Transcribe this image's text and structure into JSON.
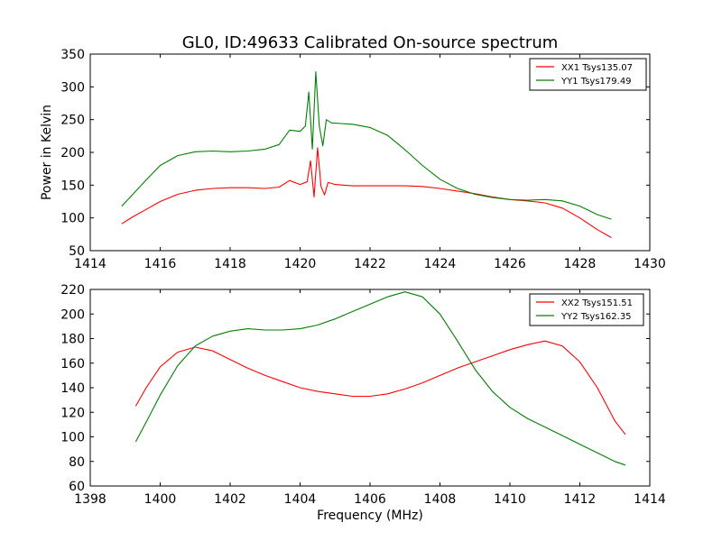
{
  "title": "GL0, ID:49633 Calibrated On-source spectrum",
  "chart_data": [
    {
      "type": "line",
      "title": "GL0, ID:49633 Calibrated On-source spectrum",
      "xlabel": "",
      "ylabel": "Power in Kelvin",
      "xlim": [
        1414,
        1430
      ],
      "ylim": [
        50,
        350
      ],
      "xticks": [
        1414,
        1416,
        1418,
        1420,
        1422,
        1424,
        1426,
        1428,
        1430
      ],
      "yticks": [
        50,
        100,
        150,
        200,
        250,
        300,
        350
      ],
      "grid": false,
      "legend_position": "top-right",
      "series": [
        {
          "name": "XX1 Tsys135.07",
          "color": "#ff0000",
          "x": [
            1414.9,
            1415.2,
            1415.6,
            1416.0,
            1416.5,
            1417.0,
            1417.5,
            1418.0,
            1418.5,
            1419.0,
            1419.4,
            1419.7,
            1420.0,
            1420.2,
            1420.3,
            1420.4,
            1420.5,
            1420.6,
            1420.7,
            1420.8,
            1421.0,
            1421.5,
            1422.0,
            1422.5,
            1423.0,
            1423.5,
            1424.0,
            1424.5,
            1425.0,
            1425.5,
            1426.0,
            1426.5,
            1427.0,
            1427.5,
            1428.0,
            1428.5,
            1428.9
          ],
          "y": [
            91,
            101,
            113,
            125,
            136,
            142,
            145,
            146,
            146,
            145,
            147,
            157,
            151,
            155,
            187,
            132,
            207,
            148,
            135,
            154,
            151,
            149,
            149,
            149,
            149,
            148,
            145,
            141,
            137,
            132,
            128,
            126,
            123,
            115,
            100,
            82,
            70
          ]
        },
        {
          "name": "YY1 Tsys179.49",
          "color": "#008000",
          "x": [
            1414.9,
            1415.2,
            1415.6,
            1416.0,
            1416.5,
            1417.0,
            1417.5,
            1418.0,
            1418.5,
            1419.0,
            1419.4,
            1419.7,
            1420.0,
            1420.15,
            1420.25,
            1420.35,
            1420.45,
            1420.55,
            1420.65,
            1420.75,
            1420.9,
            1421.5,
            1422.0,
            1422.5,
            1423.0,
            1423.5,
            1424.0,
            1424.5,
            1425.0,
            1425.5,
            1426.0,
            1426.5,
            1427.0,
            1427.5,
            1428.0,
            1428.5,
            1428.9
          ],
          "y": [
            118,
            135,
            158,
            180,
            195,
            201,
            202,
            201,
            202,
            205,
            212,
            234,
            232,
            240,
            292,
            205,
            323,
            240,
            210,
            250,
            245,
            243,
            238,
            226,
            204,
            180,
            159,
            145,
            136,
            131,
            128,
            127,
            128,
            126,
            118,
            105,
            98
          ]
        }
      ]
    },
    {
      "type": "line",
      "title": "",
      "xlabel": "Frequency (MHz)",
      "ylabel": "",
      "xlim": [
        1398,
        1414
      ],
      "ylim": [
        60,
        220
      ],
      "xticks": [
        1398,
        1400,
        1402,
        1404,
        1406,
        1408,
        1410,
        1412,
        1414
      ],
      "yticks": [
        60,
        80,
        100,
        120,
        140,
        160,
        180,
        200,
        220
      ],
      "grid": false,
      "legend_position": "top-right",
      "series": [
        {
          "name": "XX2 Tsys151.51",
          "color": "#ff0000",
          "x": [
            1399.3,
            1399.6,
            1400.0,
            1400.5,
            1401.0,
            1401.5,
            1402.0,
            1402.5,
            1403.0,
            1403.5,
            1404.0,
            1404.5,
            1405.0,
            1405.5,
            1406.0,
            1406.5,
            1407.0,
            1407.5,
            1408.0,
            1408.5,
            1409.0,
            1409.5,
            1410.0,
            1410.5,
            1411.0,
            1411.5,
            1412.0,
            1412.5,
            1413.0,
            1413.3
          ],
          "y": [
            125,
            140,
            157,
            169,
            173,
            170,
            163,
            156,
            150,
            145,
            140,
            137,
            135,
            133,
            133,
            135,
            139,
            144,
            150,
            156,
            161,
            166,
            171,
            175,
            178,
            174,
            161,
            140,
            113,
            102
          ]
        },
        {
          "name": "YY2 Tsys162.35",
          "color": "#008000",
          "x": [
            1399.3,
            1399.6,
            1400.0,
            1400.5,
            1401.0,
            1401.5,
            1402.0,
            1402.5,
            1403.0,
            1403.5,
            1404.0,
            1404.5,
            1405.0,
            1405.5,
            1406.0,
            1406.5,
            1407.0,
            1407.5,
            1408.0,
            1408.5,
            1409.0,
            1409.5,
            1410.0,
            1410.5,
            1411.0,
            1411.5,
            1412.0,
            1412.5,
            1413.0,
            1413.3
          ],
          "y": [
            96,
            112,
            134,
            158,
            174,
            182,
            186,
            188,
            187,
            187,
            188,
            191,
            196,
            202,
            208,
            214,
            218,
            214,
            200,
            178,
            155,
            137,
            124,
            115,
            108,
            101,
            94,
            87,
            80,
            77
          ]
        }
      ]
    }
  ]
}
